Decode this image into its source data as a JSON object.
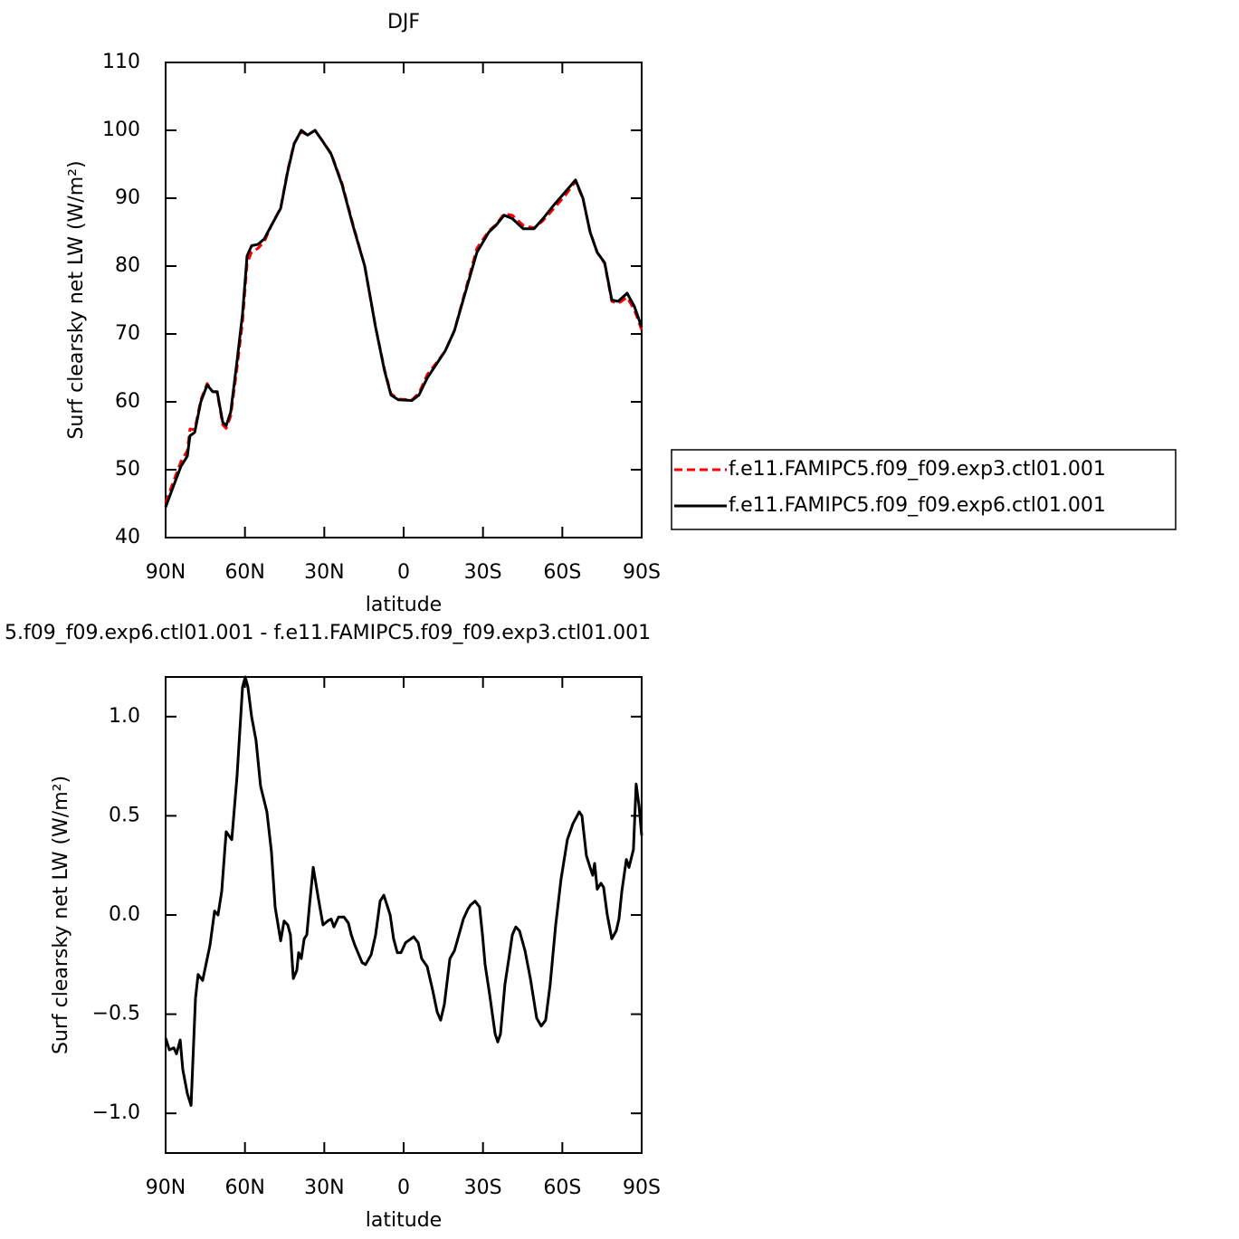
{
  "chart_data": [
    {
      "type": "line",
      "title": "DJF",
      "xlabel": "latitude",
      "ylabel": "Surf clearsky net LW (W/m²)",
      "xlim": [
        90,
        -90
      ],
      "ylim": [
        40,
        110
      ],
      "xticks": [
        {
          "value": 90,
          "label": "90N"
        },
        {
          "value": 60,
          "label": "60N"
        },
        {
          "value": 30,
          "label": "30N"
        },
        0,
        {
          "value": -30,
          "label": "30S"
        },
        {
          "value": -60,
          "label": "60S"
        },
        {
          "value": -90,
          "label": "90S"
        }
      ],
      "yticks": [
        40,
        50,
        60,
        70,
        80,
        90,
        100,
        110
      ],
      "legend": "right",
      "x": [
        90,
        87.6,
        84.2,
        81.8,
        80.8,
        79.0,
        76.7,
        74.3,
        72.2,
        70.5,
        68.4,
        67.1,
        65.4,
        63.0,
        60.9,
        59.2,
        57.5,
        55.1,
        52.7,
        50.0,
        46.5,
        43.8,
        41.4,
        38.7,
        36.3,
        33.5,
        30.8,
        27.4,
        23.3,
        19.2,
        14.7,
        10.6,
        7.2,
        4.8,
        2.0,
        -3.1,
        -5.8,
        -8.9,
        -12.3,
        -15.7,
        -19.2,
        -23.6,
        -27.7,
        -32.2,
        -34.9,
        -38.0,
        -41.1,
        -45.2,
        -49.3,
        -52.7,
        -56.8,
        -61.3,
        -65.0,
        -67.8,
        -70.5,
        -73.2,
        -76.0,
        -78.7,
        -81.1,
        -84.5,
        -87.3,
        -90
      ],
      "series": [
        {
          "name": "f.e11.FAMIPC5.f09_f09.exp3.ctl01.001",
          "color": "#ff0000",
          "linestyle": "dashed",
          "values": [
            45.1,
            47.7,
            51.2,
            52.8,
            56,
            55.9,
            60.3,
            62.7,
            61.5,
            61.4,
            56.6,
            56.1,
            57.9,
            65,
            71.8,
            80.4,
            82.1,
            82.6,
            83.6,
            86,
            88.6,
            94.2,
            98.1,
            99.8,
            99.3,
            100,
            98.5,
            96.6,
            92.2,
            86.2,
            80,
            71,
            64.7,
            61.2,
            60.4,
            60.3,
            61.3,
            64,
            65.7,
            67.5,
            70.5,
            76.8,
            82.6,
            85.2,
            86.1,
            87.7,
            87.5,
            86,
            85.6,
            86.7,
            88.5,
            90.5,
            92.5,
            89.9,
            85.1,
            82,
            80.4,
            74.8,
            74.5,
            75.4,
            73.5,
            70.6
          ]
        },
        {
          "name": "f.e11.FAMIPC5.f09_f09.exp6.ctl01.001",
          "color": "#000000",
          "linestyle": "solid",
          "values": [
            44.5,
            47,
            50.5,
            52,
            55,
            55.5,
            60,
            62.5,
            61.5,
            61.5,
            57,
            56.5,
            58.5,
            66,
            73,
            81.5,
            83,
            83.2,
            84,
            86,
            88.5,
            94,
            98,
            100,
            99.3,
            100,
            98.5,
            96.5,
            92,
            86,
            80,
            71,
            64.5,
            61,
            60.3,
            60.2,
            61,
            63.5,
            65.5,
            67.5,
            70.5,
            76.5,
            82,
            85,
            86,
            87.5,
            87,
            85.5,
            85.5,
            87,
            89,
            91,
            92.7,
            90,
            85,
            82,
            80.5,
            75,
            74.8,
            76,
            74,
            71
          ]
        }
      ]
    },
    {
      "type": "line",
      "title": "5.f09_f09.exp6.ctl01.001 - f.e11.FAMIPC5.f09_f09.exp3.ctl01.001",
      "xlabel": "latitude",
      "ylabel": "Surf clearsky net LW (W/m²)",
      "xlim": [
        90,
        -90
      ],
      "ylim": [
        -1.2,
        1.2
      ],
      "xticks": [
        {
          "value": 90,
          "label": "90N"
        },
        {
          "value": 60,
          "label": "60N"
        },
        {
          "value": 30,
          "label": "30N"
        },
        0,
        {
          "value": -30,
          "label": "30S"
        },
        {
          "value": -60,
          "label": "60S"
        },
        {
          "value": -90,
          "label": "90S"
        }
      ],
      "yticks": [
        {
          "value": -1,
          "label": "−1.0"
        },
        {
          "value": -0.5,
          "label": "−0.5"
        },
        {
          "value": 0,
          "label": "0.0"
        },
        0.5,
        {
          "value": 1,
          "label": "1.0"
        }
      ],
      "x": [
        90,
        88.6,
        86.9,
        85.9,
        84.5,
        83.5,
        81.8,
        80.4,
        78.7,
        77.7,
        76.0,
        73.2,
        71.5,
        70.2,
        68.8,
        67.1,
        65.0,
        63.0,
        60.9,
        59.9,
        58.9,
        57.5,
        55.8,
        54.1,
        51.7,
        50.0,
        48.6,
        46.5,
        45.2,
        43.8,
        42.8,
        41.7,
        40.4,
        39.7,
        38.7,
        37.6,
        36.6,
        35.6,
        34.2,
        32.2,
        30.5,
        28.7,
        27.4,
        26.4,
        24.6,
        22.6,
        20.9,
        19.8,
        18.5,
        15.7,
        14.4,
        12.3,
        10.6,
        8.9,
        7.5,
        5.1,
        3.8,
        2.4,
        1.0,
        -0.7,
        -3.8,
        -5.5,
        -6.8,
        -8.9,
        -11.0,
        -12.7,
        -14.0,
        -15.4,
        -17.5,
        -19.2,
        -20.9,
        -22.6,
        -24.3,
        -25.3,
        -27.0,
        -28.7,
        -29.8,
        -30.8,
        -32.5,
        -34.6,
        -35.6,
        -36.6,
        -38.3,
        -40.0,
        -41.1,
        -42.4,
        -43.8,
        -45.9,
        -47.9,
        -50.3,
        -52.0,
        -53.7,
        -55.4,
        -57.5,
        -59.5,
        -61.9,
        -64.0,
        -66.4,
        -67.4,
        -69.1,
        -70.5,
        -71.5,
        -72.2,
        -73.2,
        -74.6,
        -75.6,
        -77.0,
        -78.7,
        -80.4,
        -81.4,
        -82.5,
        -84.2,
        -85.2,
        -86.9,
        -87.9,
        -89.0,
        -90
      ],
      "series": [
        {
          "color": "#000000",
          "linestyle": "solid",
          "values": [
            -0.62,
            -0.68,
            -0.67,
            -0.7,
            -0.63,
            -0.78,
            -0.9,
            -0.96,
            -0.42,
            -0.3,
            -0.33,
            -0.15,
            0.02,
            0.0,
            0.12,
            0.42,
            0.38,
            0.7,
            1.15,
            1.2,
            1.15,
            1.0,
            0.88,
            0.65,
            0.52,
            0.32,
            0.04,
            -0.13,
            -0.03,
            -0.05,
            -0.1,
            -0.32,
            -0.28,
            -0.19,
            -0.22,
            -0.12,
            -0.1,
            0.05,
            0.24,
            0.08,
            -0.05,
            -0.03,
            -0.02,
            -0.06,
            -0.01,
            -0.01,
            -0.04,
            -0.1,
            -0.15,
            -0.24,
            -0.25,
            -0.2,
            -0.1,
            0.07,
            0.1,
            0.0,
            -0.12,
            -0.19,
            -0.19,
            -0.14,
            -0.11,
            -0.14,
            -0.22,
            -0.26,
            -0.38,
            -0.49,
            -0.53,
            -0.45,
            -0.22,
            -0.18,
            -0.1,
            -0.02,
            0.03,
            0.05,
            0.07,
            0.04,
            -0.1,
            -0.25,
            -0.4,
            -0.6,
            -0.64,
            -0.6,
            -0.35,
            -0.2,
            -0.1,
            -0.06,
            -0.08,
            -0.18,
            -0.32,
            -0.52,
            -0.56,
            -0.53,
            -0.35,
            -0.05,
            0.18,
            0.38,
            0.46,
            0.52,
            0.5,
            0.3,
            0.24,
            0.2,
            0.26,
            0.13,
            0.16,
            0.14,
            0.0,
            -0.12,
            -0.08,
            -0.02,
            0.12,
            0.28,
            0.24,
            0.33,
            0.66,
            0.55,
            0.4
          ]
        }
      ]
    }
  ]
}
